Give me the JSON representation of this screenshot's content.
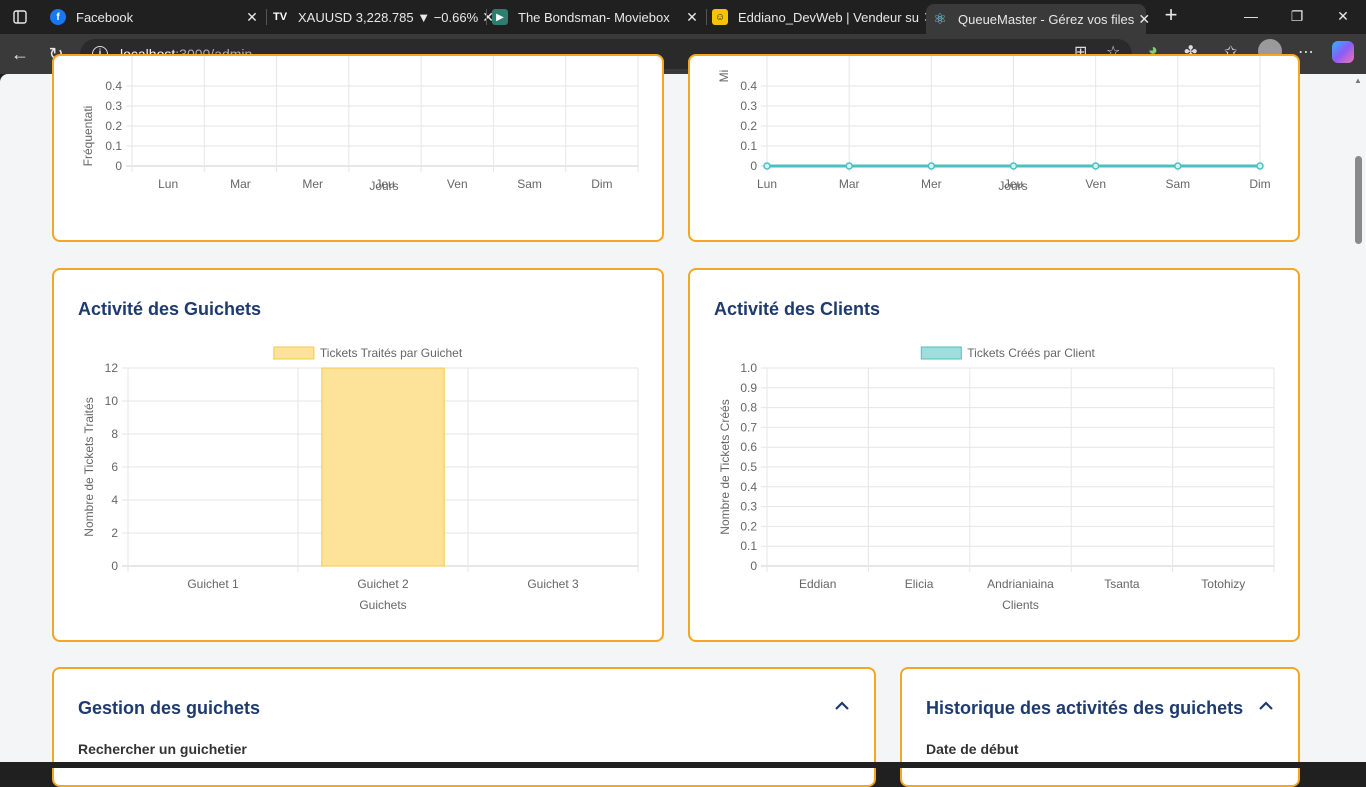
{
  "browser": {
    "tabs": [
      {
        "title": "Facebook",
        "icon": "facebook-icon",
        "color": "#1877f2",
        "glyph": "f"
      },
      {
        "title": "XAUUSD 3,228.785 ▼ −0.66%",
        "icon": "tradingview-icon",
        "color": "#202020",
        "glyph": "TV"
      },
      {
        "title": "The Bondsman- Moviebox",
        "icon": "moviebox-icon",
        "color": "#2e7d6e",
        "glyph": "▶"
      },
      {
        "title": "Eddiano_DevWeb | Vendeur su",
        "icon": "fiverr-icon",
        "color": "#f5c400",
        "glyph": "☺"
      },
      {
        "title": "QueueMaster - Gérez vos files",
        "icon": "react-icon",
        "color": "#3a3a3a",
        "glyph": "⚛"
      }
    ],
    "address": {
      "host": "localhost",
      "path": ":3000/admin"
    }
  },
  "top_left_chart": {
    "ylabel": "Fréquentati",
    "xlabel": "Jours",
    "ticks_y": [
      "0.4",
      "0.3",
      "0.2",
      "0.1",
      "0"
    ],
    "categories": [
      "Lun",
      "Mar",
      "Mer",
      "Jeu",
      "Ven",
      "Sam",
      "Dim"
    ]
  },
  "top_right_chart": {
    "ylabel": "Mi",
    "xlabel": "Jours",
    "ticks_y": [
      "0.4",
      "0.3",
      "0.2",
      "0.1",
      "0"
    ],
    "categories": [
      "Lun",
      "Mar",
      "Mer",
      "Jeu",
      "Ven",
      "Sam",
      "Dim"
    ],
    "values": [
      0,
      0,
      0,
      0,
      0,
      0,
      0
    ],
    "color": "#4bc0c0"
  },
  "guichets_card": {
    "title": "Activité des Guichets"
  },
  "clients_card": {
    "title": "Activité des Clients"
  },
  "chart_data": [
    {
      "type": "bar",
      "title": "",
      "legend": "Tickets Traités par Guichet",
      "categories": [
        "Guichet 1",
        "Guichet 2",
        "Guichet 3"
      ],
      "values": [
        0,
        12,
        0
      ],
      "xlabel": "Guichets",
      "ylabel": "Nombre de Tickets Traités",
      "ylim": [
        0,
        12
      ],
      "yticks": [
        "12",
        "10",
        "8",
        "6",
        "4",
        "2",
        "0"
      ],
      "color": "#fde299",
      "border_color": "#f7c948"
    },
    {
      "type": "bar",
      "title": "",
      "legend": "Tickets Créés par Client",
      "categories": [
        "Eddian",
        "Elicia",
        "Andrianiaina",
        "Tsanta",
        "Totohizy"
      ],
      "values": [
        0,
        0,
        0,
        0,
        0
      ],
      "xlabel": "Clients",
      "ylabel": "Nombre de Tickets Créés",
      "ylim": [
        0,
        1
      ],
      "yticks": [
        "1.0",
        "0.9",
        "0.8",
        "0.7",
        "0.6",
        "0.5",
        "0.4",
        "0.3",
        "0.2",
        "0.1",
        "0"
      ],
      "color": "#a0dede",
      "border_color": "#4bc0c0"
    }
  ],
  "gestion": {
    "title": "Gestion des guichets",
    "search_label": "Rechercher un guichetier"
  },
  "historique": {
    "title": "Historique des activités des guichets",
    "start_label": "Date de début"
  }
}
